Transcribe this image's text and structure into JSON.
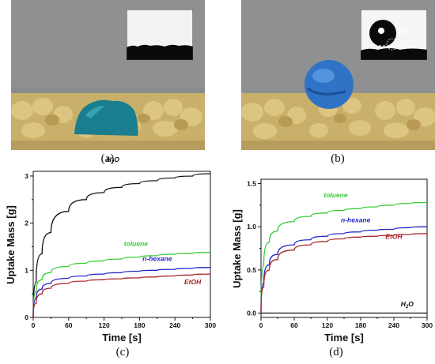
{
  "photos": [
    {
      "label": "(a)",
      "inset_text": "",
      "colors": {
        "background": "#8a8c8d",
        "sand": "#d8c07a",
        "droplet": "#1b7e8e",
        "inset_bg": "#f2f2f2"
      }
    },
    {
      "label": "(b)",
      "inset_text": "145°",
      "colors": {
        "background": "#8f9091",
        "sand": "#d8bf72",
        "droplet": "#2f73c6",
        "inset_bg": "#f5f5f5"
      }
    }
  ],
  "chart_data": [
    {
      "type": "line",
      "panel_label": "(c)",
      "xlabel": "Time [s]",
      "ylabel": "Uptake Mass [g]",
      "xlim": [
        0,
        300
      ],
      "ylim": [
        0,
        3.1
      ],
      "xticks": [
        "0",
        "60",
        "120",
        "180",
        "240",
        "300"
      ],
      "yticks": [
        "0",
        "1",
        "2",
        "3"
      ],
      "x": [
        0,
        5,
        15,
        30,
        60,
        90,
        120,
        150,
        180,
        210,
        240,
        270,
        300
      ],
      "series": [
        {
          "name": "H2O",
          "color": "#111111",
          "values": [
            0,
            0.75,
            1.35,
            1.8,
            2.25,
            2.5,
            2.65,
            2.76,
            2.84,
            2.9,
            2.96,
            3.0,
            3.05
          ]
        },
        {
          "name": "toluene",
          "color": "#33cc33",
          "values": [
            0,
            0.55,
            0.8,
            0.95,
            1.08,
            1.15,
            1.2,
            1.24,
            1.28,
            1.31,
            1.34,
            1.36,
            1.38
          ]
        },
        {
          "name": "n-hexane",
          "color": "#2222cc",
          "values": [
            0,
            0.4,
            0.6,
            0.72,
            0.83,
            0.88,
            0.92,
            0.95,
            0.98,
            1.0,
            1.02,
            1.04,
            1.06
          ]
        },
        {
          "name": "EtOH",
          "color": "#aa2222",
          "values": [
            0,
            0.3,
            0.5,
            0.62,
            0.72,
            0.77,
            0.8,
            0.82,
            0.84,
            0.86,
            0.88,
            0.9,
            0.92
          ]
        }
      ]
    },
    {
      "type": "line",
      "panel_label": "(d)",
      "xlabel": "Time [s]",
      "ylabel": "Uptake Mass [g]",
      "xlim": [
        0,
        300
      ],
      "ylim": [
        -0.05,
        1.55
      ],
      "xticks": [
        "0",
        "60",
        "120",
        "180",
        "240",
        "300"
      ],
      "yticks": [
        "0.0",
        "0.5",
        "1.0",
        "1.5"
      ],
      "x": [
        0,
        5,
        15,
        30,
        60,
        90,
        120,
        150,
        180,
        210,
        240,
        270,
        300
      ],
      "series": [
        {
          "name": "toluene",
          "color": "#33cc33",
          "values": [
            0,
            0.55,
            0.82,
            0.95,
            1.06,
            1.12,
            1.16,
            1.19,
            1.21,
            1.23,
            1.25,
            1.27,
            1.28
          ]
        },
        {
          "name": "n-hexane",
          "color": "#2222cc",
          "values": [
            0,
            0.35,
            0.56,
            0.68,
            0.79,
            0.85,
            0.89,
            0.92,
            0.94,
            0.96,
            0.97,
            0.99,
            1.0
          ]
        },
        {
          "name": "EtOH",
          "color": "#aa2222",
          "values": [
            0,
            0.3,
            0.5,
            0.62,
            0.73,
            0.79,
            0.83,
            0.86,
            0.88,
            0.89,
            0.9,
            0.91,
            0.92
          ]
        },
        {
          "name": "H2O",
          "color": "#111111",
          "values": [
            0,
            0,
            0,
            0,
            0,
            0,
            0,
            0,
            0,
            0,
            0,
            0,
            0
          ]
        }
      ]
    }
  ]
}
